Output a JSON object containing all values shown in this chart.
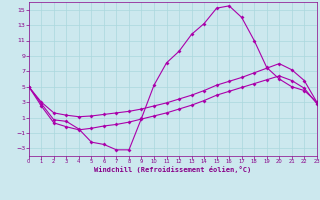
{
  "xlabel": "Windchill (Refroidissement éolien,°C)",
  "bg_color": "#cce8ee",
  "line_color": "#aa00aa",
  "xlim": [
    0,
    23
  ],
  "ylim": [
    -4,
    16
  ],
  "xticks": [
    0,
    1,
    2,
    3,
    4,
    5,
    6,
    7,
    8,
    9,
    10,
    11,
    12,
    13,
    14,
    15,
    16,
    17,
    18,
    19,
    20,
    21,
    22,
    23
  ],
  "yticks": [
    -3,
    -1,
    1,
    3,
    5,
    7,
    9,
    11,
    13,
    15
  ],
  "line1_x": [
    0,
    1,
    2,
    3,
    4,
    5,
    6,
    7,
    8,
    9,
    10,
    11,
    12,
    13,
    14,
    15,
    16,
    17,
    18,
    19,
    20,
    21,
    22,
    23
  ],
  "line1_y": [
    5.0,
    2.8,
    0.7,
    0.5,
    -0.5,
    -2.2,
    -2.5,
    -3.2,
    -3.2,
    0.9,
    5.2,
    8.1,
    9.6,
    11.8,
    13.2,
    15.2,
    15.5,
    14.0,
    11.0,
    7.5,
    6.0,
    5.0,
    4.5,
    3.0
  ],
  "line2_x": [
    0,
    1,
    2,
    3,
    4,
    5,
    6,
    7,
    8,
    9,
    10,
    11,
    12,
    13,
    14,
    15,
    16,
    17,
    18,
    19,
    20,
    21,
    22,
    23
  ],
  "line2_y": [
    5.0,
    3.0,
    1.6,
    1.3,
    1.1,
    1.2,
    1.4,
    1.6,
    1.8,
    2.1,
    2.5,
    2.9,
    3.4,
    3.9,
    4.5,
    5.2,
    5.7,
    6.2,
    6.8,
    7.4,
    8.0,
    7.2,
    5.8,
    3.0
  ],
  "line3_x": [
    0,
    1,
    2,
    3,
    4,
    5,
    6,
    7,
    8,
    9,
    10,
    11,
    12,
    13,
    14,
    15,
    16,
    17,
    18,
    19,
    20,
    21,
    22,
    23
  ],
  "line3_y": [
    5.0,
    2.5,
    0.3,
    -0.2,
    -0.6,
    -0.4,
    -0.1,
    0.1,
    0.4,
    0.8,
    1.2,
    1.6,
    2.1,
    2.6,
    3.2,
    3.9,
    4.4,
    4.9,
    5.4,
    5.9,
    6.4,
    5.8,
    4.8,
    2.8
  ],
  "grid_color": "#aad8dd",
  "tick_color": "#880088",
  "markersize": 2.0,
  "linewidth": 0.8
}
